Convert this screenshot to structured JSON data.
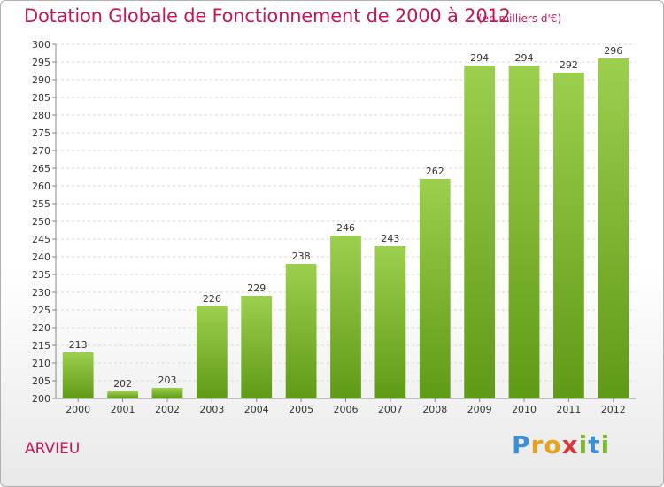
{
  "header": {
    "title": "Dotation Globale de Fonctionnement de 2000 à 2012",
    "subtitle": "(en milliers d'€)"
  },
  "footer": {
    "place": "ARVIEU",
    "logo_letters": [
      "P",
      "r",
      "o",
      "x",
      "i",
      "t",
      "i"
    ],
    "logo_colors": [
      "#3a8fd6",
      "#e6a21a",
      "#e6a21a",
      "#d63a3a",
      "#7dbb2c",
      "#3a8fd6",
      "#7dbb2c"
    ]
  },
  "chart_data": {
    "type": "bar",
    "categories": [
      "2000",
      "2001",
      "2002",
      "2003",
      "2004",
      "2005",
      "2006",
      "2007",
      "2008",
      "2009",
      "2010",
      "2011",
      "2012"
    ],
    "values": [
      213,
      202,
      203,
      226,
      229,
      238,
      246,
      243,
      262,
      294,
      294,
      292,
      296
    ],
    "title": "Dotation Globale de Fonctionnement de 2000 à 2012",
    "ylabel": "",
    "xlabel": "",
    "ylim": [
      200,
      300
    ],
    "ytick_step": 5,
    "grid": true,
    "bar_color_top": "#9ccf4e",
    "bar_color_bottom": "#5f9a16",
    "grid_color": "#d8d8d8"
  }
}
